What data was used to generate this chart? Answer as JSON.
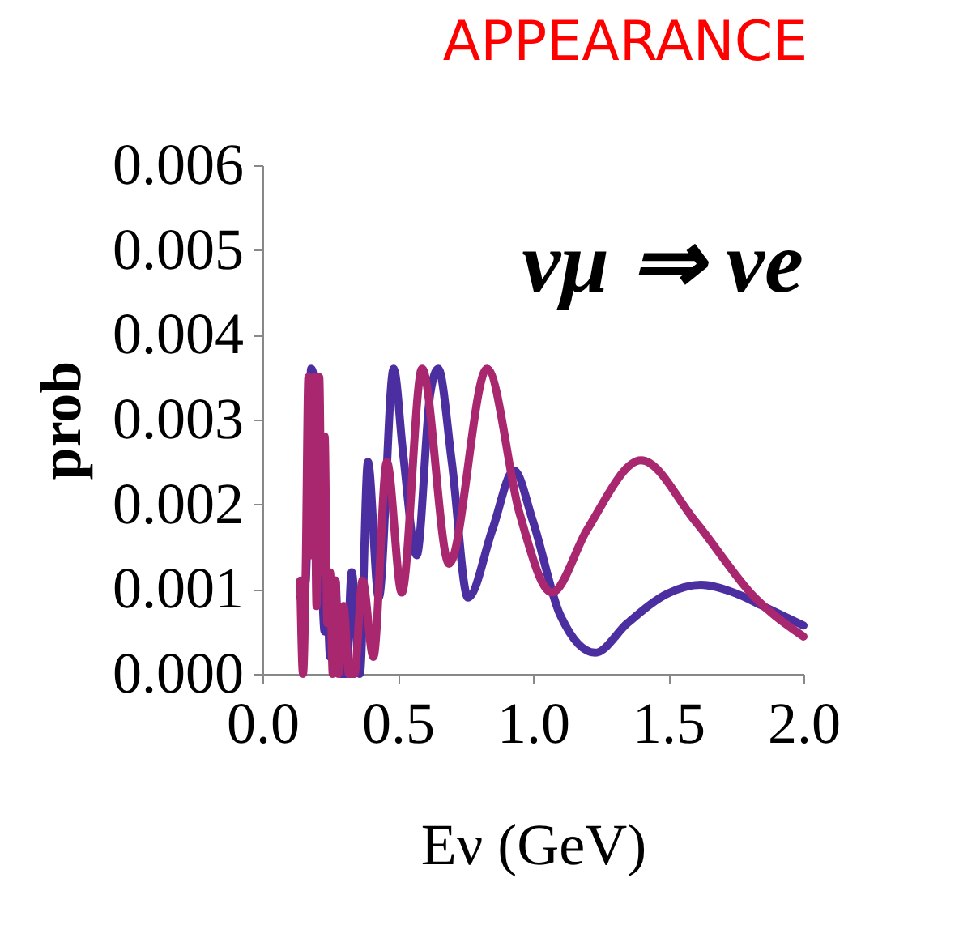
{
  "chart_data": {
    "type": "line",
    "title": "APPEARANCE",
    "xlabel": "Eν (GeV)",
    "ylabel": "prob",
    "annotations": [
      "νμ ⇒ νe"
    ],
    "xlim": [
      0,
      2.0
    ],
    "xticks": [
      {
        "value": 0,
        "label": "0.0"
      },
      0.5,
      {
        "value": 1,
        "label": "1.0"
      },
      1.5,
      {
        "value": 2,
        "label": "2.0"
      }
    ],
    "ylim": [
      0,
      0.006
    ],
    "yticks": [
      {
        "value": 0,
        "label": "0.000"
      },
      0.001,
      0.002,
      0.003,
      0.004,
      0.005,
      0.006
    ],
    "grid": false,
    "legend": false,
    "marker": "none",
    "line_style": "solid",
    "series": [
      {
        "color": "#4b2fa0",
        "x": [
          0.14,
          0.15,
          0.16,
          0.17,
          0.18,
          0.19,
          0.2,
          0.21,
          0.22,
          0.23,
          0.24,
          0.25,
          0.26,
          0.27,
          0.28,
          0.29,
          0.31,
          0.33,
          0.36,
          0.39,
          0.43,
          0.485,
          0.52,
          0.57,
          0.62,
          0.65,
          0.7,
          0.76,
          0.85,
          0.93,
          1.0,
          1.1,
          1.23,
          1.35,
          1.5,
          1.62,
          1.75,
          1.85,
          2.0
        ],
        "values": [
          0.0009,
          0.001,
          0.0011,
          0.0022,
          0.0036,
          0.0035,
          0.002,
          0.003,
          0.0012,
          0.0005,
          0.0008,
          0.0002,
          0.0009,
          0.0011,
          0.0003,
          0.0,
          0.0,
          0.0012,
          0.0,
          0.0025,
          0.0009,
          0.0036,
          0.0026,
          0.0014,
          0.0033,
          0.0036,
          0.0025,
          0.0009,
          0.0017,
          0.0024,
          0.0018,
          0.0007,
          0.00025,
          0.0006,
          0.00095,
          0.00105,
          0.00095,
          0.0008,
          0.00057
        ]
      },
      {
        "color": "#a8276e",
        "x": [
          0.14,
          0.15,
          0.16,
          0.17,
          0.18,
          0.19,
          0.2,
          0.21,
          0.22,
          0.23,
          0.24,
          0.25,
          0.26,
          0.27,
          0.28,
          0.3,
          0.32,
          0.34,
          0.37,
          0.41,
          0.46,
          0.515,
          0.59,
          0.69,
          0.83,
          0.95,
          1.07,
          1.2,
          1.4,
          1.6,
          1.82,
          2.0
        ],
        "values": [
          0.0011,
          0.0,
          0.0012,
          0.0035,
          0.0014,
          0.0035,
          0.0008,
          0.0035,
          0.0012,
          0.0028,
          0.0006,
          0.0012,
          0.0,
          0.0011,
          0.0,
          0.0008,
          0.0,
          0.0,
          0.0011,
          0.0002,
          0.0025,
          0.00096,
          0.0036,
          0.0013,
          0.0036,
          0.0019,
          0.00096,
          0.0017,
          0.00252,
          0.0018,
          0.0009,
          0.00044
        ]
      }
    ]
  }
}
